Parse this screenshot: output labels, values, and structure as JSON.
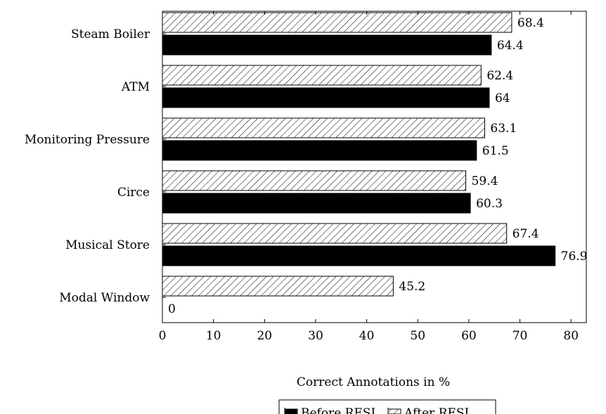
{
  "chart_data": {
    "type": "bar",
    "orientation": "horizontal",
    "categories": [
      "Steam Boiler",
      "ATM",
      "Monitoring Pressure",
      "Circe",
      "Musical Store",
      "Modal Window"
    ],
    "series": [
      {
        "name": "Before RESI",
        "fill": "solid-black",
        "values": [
          64.4,
          64,
          61.5,
          60.3,
          76.9,
          0
        ]
      },
      {
        "name": "After RESI",
        "fill": "diagonal-hatch",
        "values": [
          68.4,
          62.4,
          63.1,
          59.4,
          67.4,
          45.2
        ]
      }
    ],
    "xlabel": "Correct Annotations in %",
    "ylabel": "",
    "xlim": [
      0,
      83
    ],
    "x_ticks": [
      0,
      10,
      20,
      30,
      40,
      50,
      60,
      70,
      80
    ],
    "grid": false,
    "legend_position": "bottom-center",
    "colors": {
      "before": "#000000",
      "after_stroke": "#000000",
      "background": "#ffffff"
    }
  }
}
